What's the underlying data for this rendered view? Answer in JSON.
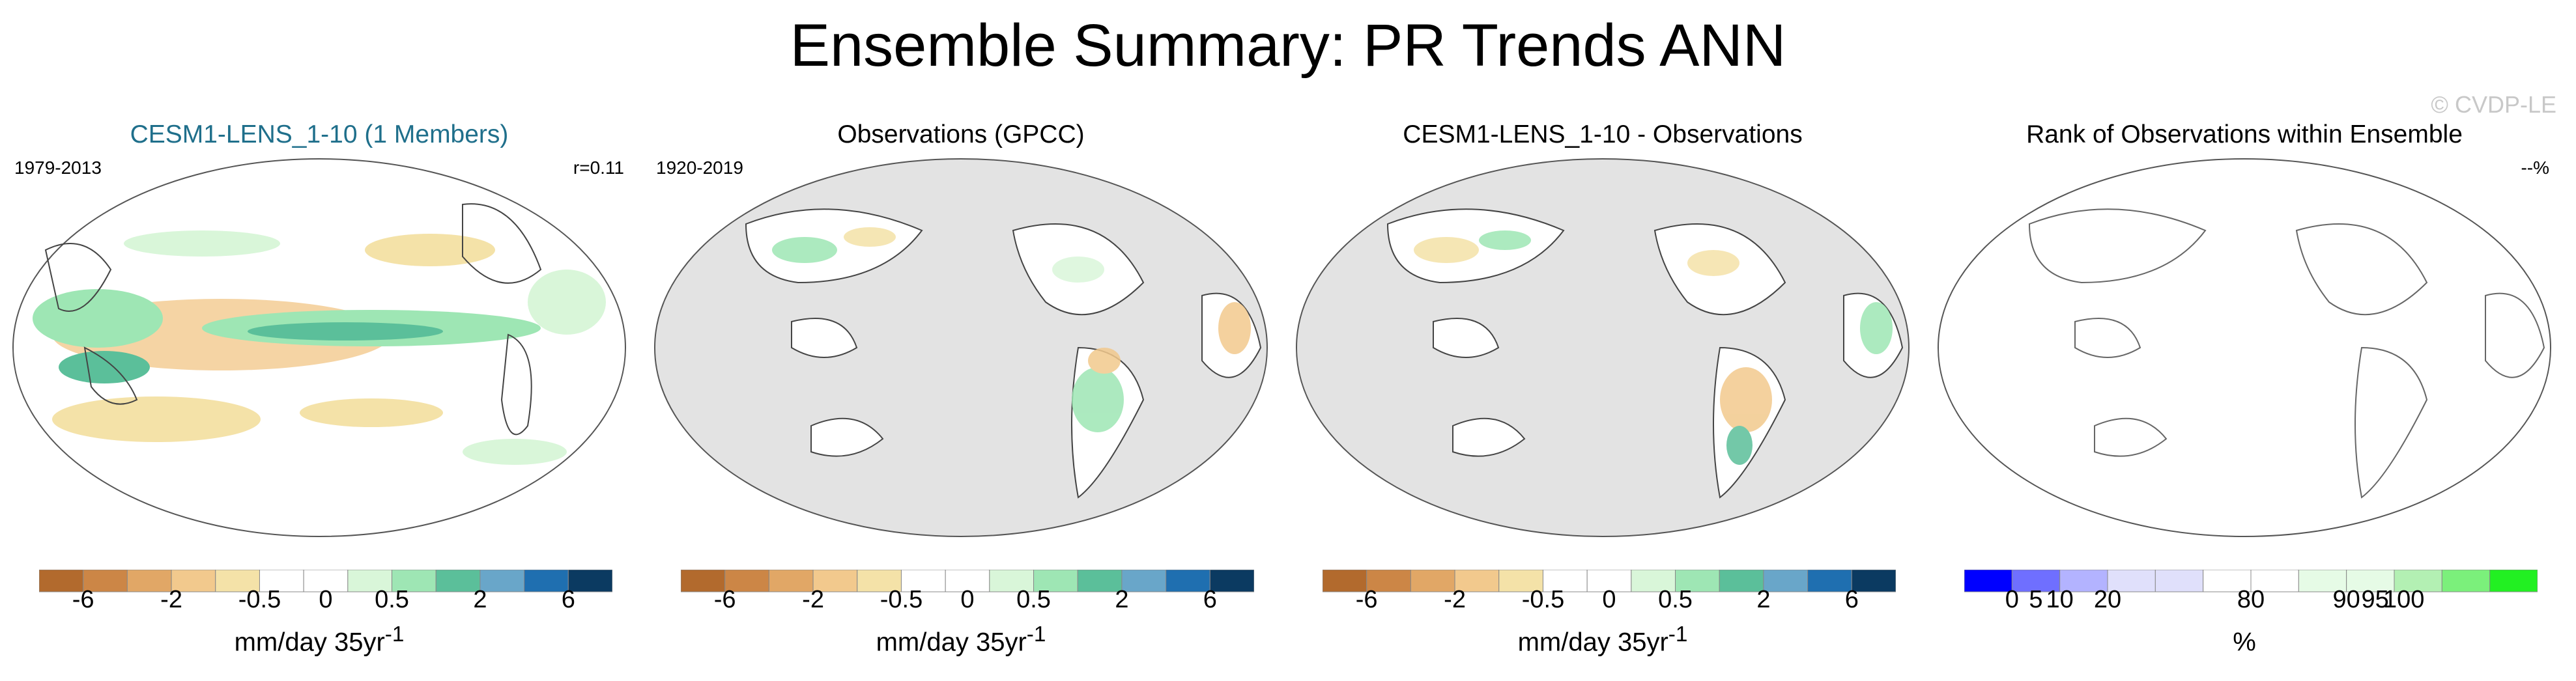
{
  "title": "Ensemble Summary: PR Trends ANN",
  "watermark": "© CVDP-LE",
  "panels": [
    {
      "title": "CESM1-LENS_1-10 (1 Members)",
      "left_label": "1979-2013",
      "right_label": "r=0.11",
      "map_style": "full-field",
      "colorbar": {
        "colors": [
          "#b26a2d",
          "#cc8646",
          "#e1a766",
          "#f2c98d",
          "#f4e2a8",
          "#ffffff",
          "#ffffff",
          "#d9f6d9",
          "#9ee6b4",
          "#5bbf9a",
          "#69a6c9",
          "#1f6fb0",
          "#0b3a61"
        ],
        "ticks": [
          "-6",
          "-2",
          "-0.5",
          "0",
          "0.5",
          "2",
          "6"
        ],
        "label": "mm/day 35yr",
        "label_sup": "-1"
      }
    },
    {
      "title": "Observations (GPCC)",
      "left_label": "1920-2019",
      "right_label": "",
      "map_style": "land-only",
      "colorbar": {
        "colors": [
          "#b26a2d",
          "#cc8646",
          "#e1a766",
          "#f2c98d",
          "#f4e2a8",
          "#ffffff",
          "#ffffff",
          "#d9f6d9",
          "#9ee6b4",
          "#5bbf9a",
          "#69a6c9",
          "#1f6fb0",
          "#0b3a61"
        ],
        "ticks": [
          "-6",
          "-2",
          "-0.5",
          "0",
          "0.5",
          "2",
          "6"
        ],
        "label": "mm/day 35yr",
        "label_sup": "-1"
      }
    },
    {
      "title": "CESM1-LENS_1-10 - Observations",
      "left_label": "",
      "right_label": "",
      "map_style": "land-only",
      "colorbar": {
        "colors": [
          "#b26a2d",
          "#cc8646",
          "#e1a766",
          "#f2c98d",
          "#f4e2a8",
          "#ffffff",
          "#ffffff",
          "#d9f6d9",
          "#9ee6b4",
          "#5bbf9a",
          "#69a6c9",
          "#1f6fb0",
          "#0b3a61"
        ],
        "ticks": [
          "-6",
          "-2",
          "-0.5",
          "0",
          "0.5",
          "2",
          "6"
        ],
        "label": "mm/day 35yr",
        "label_sup": "-1"
      }
    },
    {
      "title": "Rank of Observations within Ensemble",
      "left_label": "",
      "right_label": "--%",
      "map_style": "blank",
      "colorbar": {
        "colors": [
          "#0000ff",
          "#6f6fff",
          "#b3b3ff",
          "#e0e0fb",
          "#e0e0fb",
          "#ffffff",
          "#ffffff",
          "#e6fbe6",
          "#e6fbe6",
          "#b3f0b3",
          "#7bf07b",
          "#22f022"
        ],
        "ticks": [
          "0",
          "5",
          "10",
          "20",
          "80",
          "90",
          "95",
          "100"
        ],
        "tick_positions": [
          1,
          1.5,
          2,
          3,
          6,
          8,
          8.6,
          9.2
        ],
        "label": "%",
        "label_sup": ""
      }
    }
  ]
}
